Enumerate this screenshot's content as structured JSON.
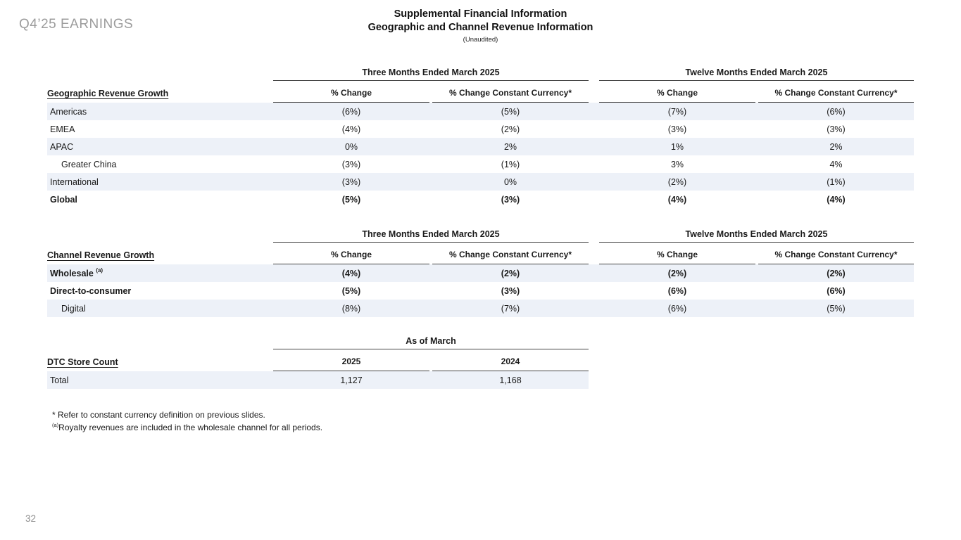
{
  "slide": {
    "eyebrow": "Q4’25 EARNINGS",
    "title_line1": "Supplemental Financial Information",
    "title_line2": "Geographic and Channel Revenue Information",
    "subtitle": "(Unaudited)",
    "page_number": "32"
  },
  "colors": {
    "row_stripe": "#edf1f8",
    "rule": "#454545",
    "eyebrow_gray": "#9c9c9c"
  },
  "geographic_table": {
    "title": "Geographic Revenue Growth",
    "group_headers": [
      "Three Months Ended March 2025",
      "Twelve Months Ended March 2025"
    ],
    "column_headers": [
      "% Change",
      "% Change Constant Currency*",
      "% Change",
      "% Change Constant Currency*"
    ],
    "rows": [
      {
        "label": "Americas",
        "values": [
          "(6%)",
          "(5%)",
          "(7%)",
          "(6%)"
        ]
      },
      {
        "label": "EMEA",
        "values": [
          "(4%)",
          "(2%)",
          "(3%)",
          "(3%)"
        ]
      },
      {
        "label": "APAC",
        "values": [
          "0%",
          "2%",
          "1%",
          "2%"
        ]
      },
      {
        "label": "Greater China",
        "values": [
          "(3%)",
          "(1%)",
          "3%",
          "4%"
        ]
      },
      {
        "label": "International",
        "values": [
          "(3%)",
          "0%",
          "(2%)",
          "(1%)"
        ]
      },
      {
        "label": "Global",
        "values": [
          "(5%)",
          "(3%)",
          "(4%)",
          "(4%)"
        ]
      }
    ]
  },
  "channel_table": {
    "title": "Channel Revenue Growth",
    "group_headers": [
      "Three Months Ended March 2025",
      "Twelve Months Ended March 2025"
    ],
    "column_headers": [
      "% Change",
      "% Change Constant Currency*",
      "% Change",
      "% Change Constant Currency*"
    ],
    "rows": [
      {
        "label": "Wholesale",
        "footnote_marker": "(a)",
        "values": [
          "(4%)",
          "(2%)",
          "(2%)",
          "(2%)"
        ]
      },
      {
        "label": "Direct-to-consumer",
        "values": [
          "(5%)",
          "(3%)",
          "(6%)",
          "(6%)"
        ]
      },
      {
        "label": "Digital",
        "values": [
          "(8%)",
          "(7%)",
          "(6%)",
          "(5%)"
        ]
      }
    ]
  },
  "store_count_table": {
    "title": "DTC Store Count",
    "group_header": "As of March",
    "column_headers": [
      "2025",
      "2024"
    ],
    "rows": [
      {
        "label": "Total",
        "values": [
          "1,127",
          "1,168"
        ]
      }
    ]
  },
  "footnotes": [
    {
      "marker": "*",
      "text": "Refer to constant currency definition on previous slides."
    },
    {
      "marker": "(a)",
      "text": "Royalty revenues are included in the wholesale channel for all periods."
    }
  ]
}
